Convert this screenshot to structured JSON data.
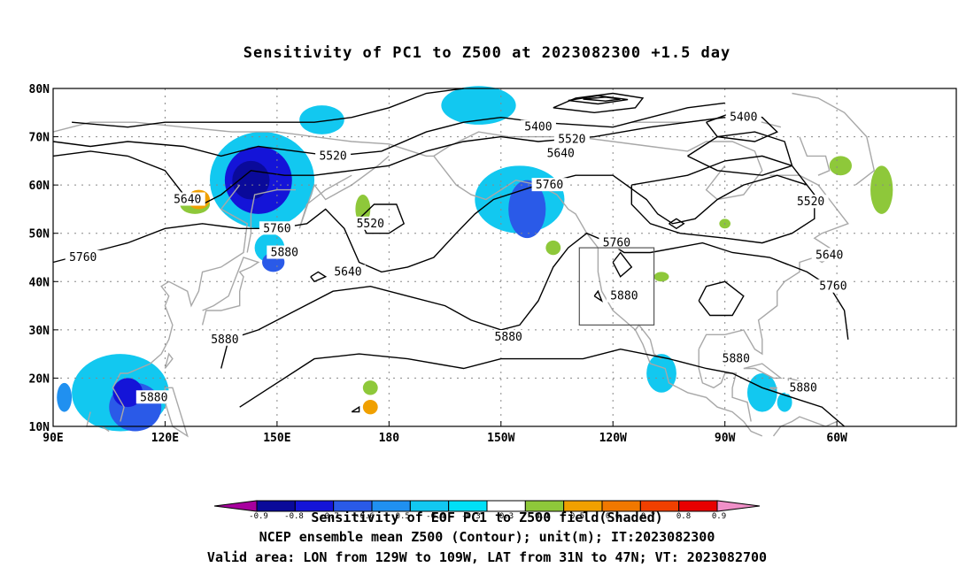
{
  "title": "Sensitivity of PC1 to Z500 at 2023082300 +1.5 day",
  "lat_labels": [
    "80N",
    "70N",
    "60N",
    "50N",
    "40N",
    "30N",
    "20N",
    "10N"
  ],
  "lon_labels": [
    "90E",
    "120E",
    "150E",
    "180",
    "150W",
    "120W",
    "90W",
    "60W"
  ],
  "contour_labels": [
    {
      "text": "5400",
      "lon": -140,
      "lat": 72
    },
    {
      "text": "5520",
      "lon": -131,
      "lat": 69.5
    },
    {
      "text": "5400",
      "lon": -85,
      "lat": 74
    },
    {
      "text": "5640",
      "lon": -134,
      "lat": 66.5
    },
    {
      "text": "5520",
      "lon": 165,
      "lat": 66
    },
    {
      "text": "5760",
      "lon": -137,
      "lat": 60
    },
    {
      "text": "5640",
      "lon": 126,
      "lat": 57
    },
    {
      "text": "5520",
      "lon": 175,
      "lat": 52
    },
    {
      "text": "5520",
      "lon": -67,
      "lat": 56.5
    },
    {
      "text": "5760",
      "lon": 150,
      "lat": 51
    },
    {
      "text": "5760",
      "lon": -119,
      "lat": 48
    },
    {
      "text": "5760",
      "lon": 98,
      "lat": 45
    },
    {
      "text": "5880",
      "lon": 152,
      "lat": 46
    },
    {
      "text": "5640",
      "lon": -62,
      "lat": 45.5
    },
    {
      "text": "5640",
      "lon": 169,
      "lat": 42
    },
    {
      "text": "5760",
      "lon": -61,
      "lat": 39
    },
    {
      "text": "5880",
      "lon": -117,
      "lat": 37
    },
    {
      "text": "5880",
      "lon": 136,
      "lat": 28
    },
    {
      "text": "5880",
      "lon": -148,
      "lat": 28.5
    },
    {
      "text": "5880",
      "lon": -87,
      "lat": 24
    },
    {
      "text": "5880",
      "lon": -69,
      "lat": 18
    },
    {
      "text": "5880",
      "lon": 117,
      "lat": 16
    }
  ],
  "valid_box": {
    "lon_w": -129,
    "lon_e": -109,
    "lat_s": 31,
    "lat_n": 47
  },
  "colorbar": {
    "levels": [
      "-0.9",
      "-0.8",
      "-0.7",
      "-0.6",
      "-0.5",
      "-0.4",
      "-0.3",
      "0.3",
      "0.4",
      "0.5",
      "0.6",
      "0.7",
      "0.8",
      "0.9"
    ],
    "colors": [
      "#a8009e",
      "#0a0a9a",
      "#1414d8",
      "#2a5ae8",
      "#2090f0",
      "#12c8f0",
      "#00e0f6",
      "#ffffff",
      "#8ec83a",
      "#f0a000",
      "#f07800",
      "#f04000",
      "#e80000",
      "#f090c8"
    ]
  },
  "footer": {
    "line1": "Sensitivity of EOF PC1 to Z500 field(Shaded)",
    "line2": "NCEP ensemble mean Z500 (Contour); unit(m); IT:2023082300",
    "line3": "Valid area: LON from 129W to 109W, LAT from 31N to 47N; VT: 2023082700"
  },
  "colors": {
    "contour": "#000000",
    "coastline": "#a8a8a8",
    "grid": "#888888",
    "positive": "#8ec83a",
    "negative_light": "#12c8f0",
    "negative_dark": "#1414d8"
  }
}
